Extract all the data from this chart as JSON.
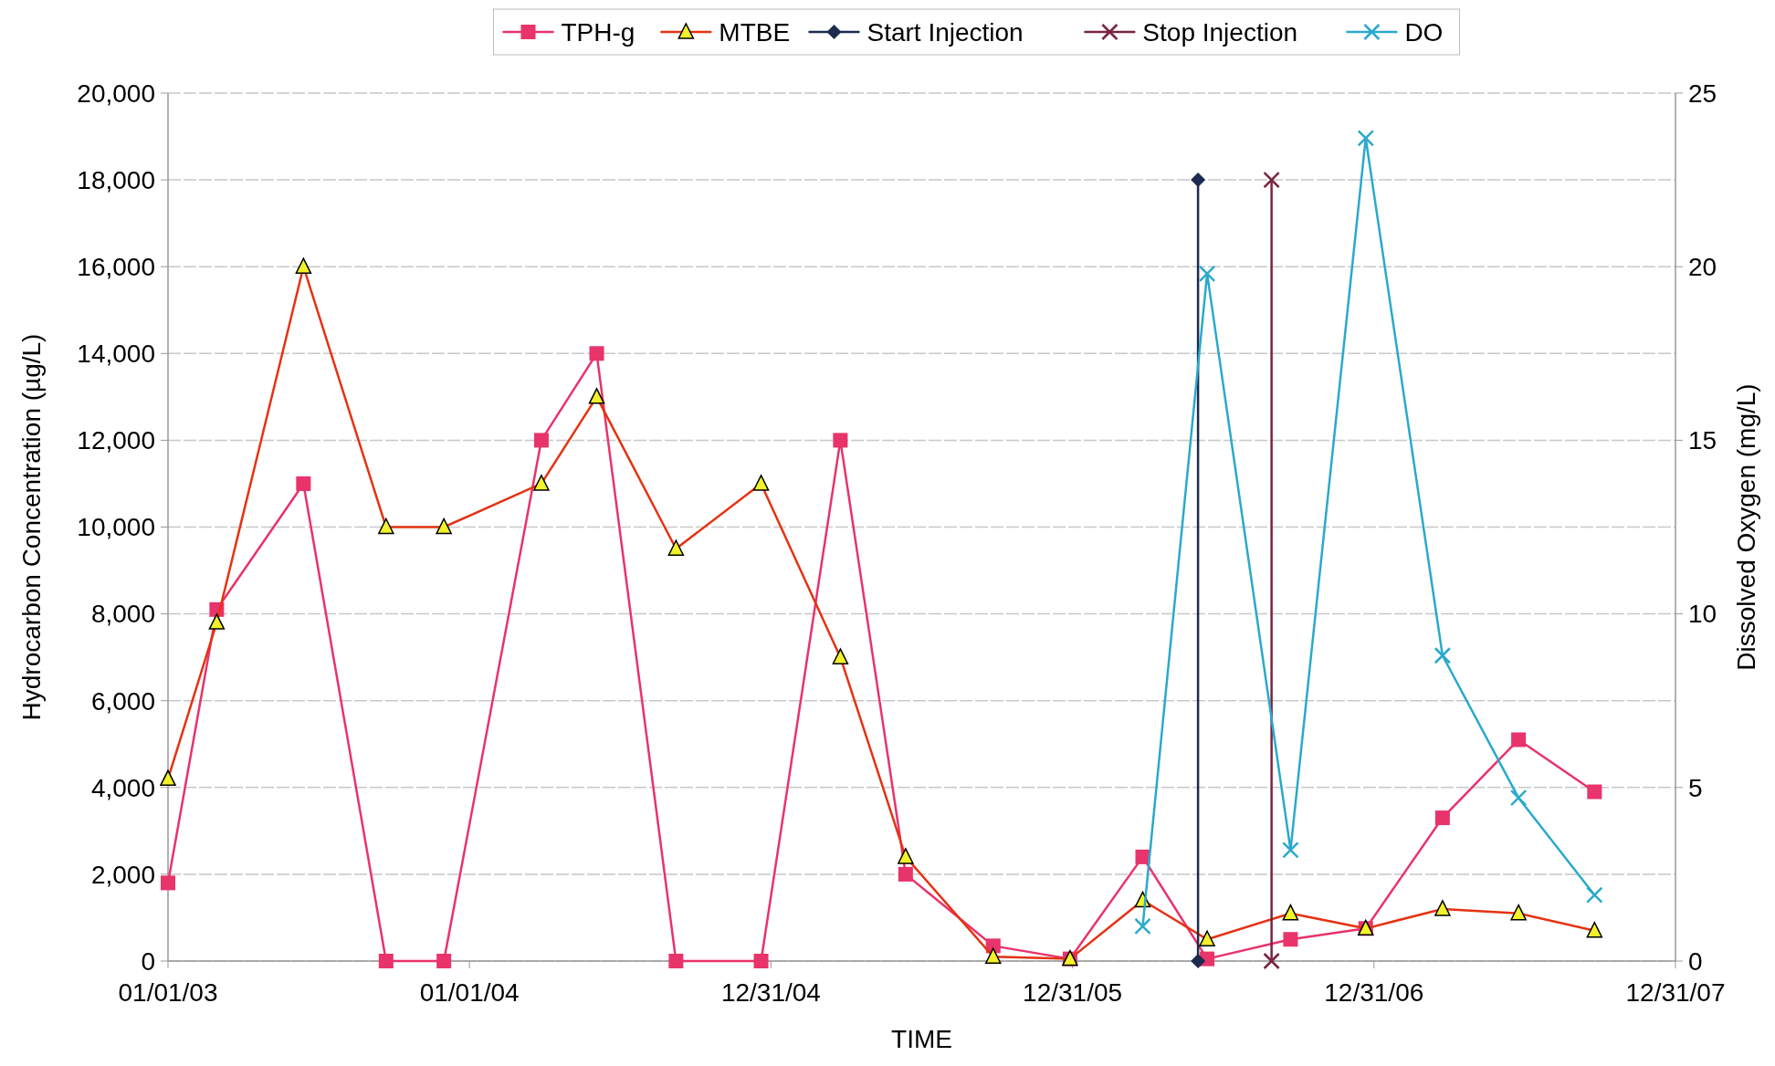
{
  "chart_data": {
    "type": "line",
    "xlabel": "TIME",
    "ylabel": "Hydrocarbon Concentration (µg/L)",
    "y2label": "Dissolved Oxygen (mg/L)",
    "xlim": [
      "2003-01-01",
      "2007-12-31"
    ],
    "xticks": [
      {
        "value": "2003-01-01",
        "label": "01/01/03"
      },
      {
        "value": "2004-01-01",
        "label": "01/01/04"
      },
      {
        "value": "2004-12-31",
        "label": "12/31/04"
      },
      {
        "value": "2005-12-31",
        "label": "12/31/05"
      },
      {
        "value": "2006-12-31",
        "label": "12/31/06"
      },
      {
        "value": "2007-12-31",
        "label": "12/31/07"
      }
    ],
    "ylim": [
      0,
      20000
    ],
    "yticks": [
      {
        "value": 0,
        "label": "0"
      },
      {
        "value": 2000,
        "label": "2,000"
      },
      {
        "value": 4000,
        "label": "4,000"
      },
      {
        "value": 6000,
        "label": "6,000"
      },
      {
        "value": 8000,
        "label": "8,000"
      },
      {
        "value": 10000,
        "label": "10,000"
      },
      {
        "value": 12000,
        "label": "12,000"
      },
      {
        "value": 14000,
        "label": "14,000"
      },
      {
        "value": 16000,
        "label": "16,000"
      },
      {
        "value": 18000,
        "label": "18,000"
      },
      {
        "value": 20000,
        "label": "20,000"
      }
    ],
    "y2lim": [
      0,
      25
    ],
    "y2ticks": [
      0,
      5,
      10,
      15,
      20,
      25
    ],
    "grid": "y",
    "legend": "top",
    "series": [
      {
        "name": "TPH-g",
        "color": "#e8336b",
        "marker": "square",
        "x": [
          "2003-01-01",
          "2003-03-01",
          "2003-06-14",
          "2003-09-22",
          "2003-12-01",
          "2004-03-28",
          "2004-06-03",
          "2004-09-07",
          "2004-12-19",
          "2005-03-25",
          "2005-06-12",
          "2005-09-26",
          "2005-12-28",
          "2006-03-26",
          "2006-06-12",
          "2006-09-21",
          "2006-12-21",
          "2007-03-24",
          "2007-06-24",
          "2007-09-24"
        ],
        "values": [
          1800,
          8100,
          11000,
          0,
          0,
          12000,
          14000,
          0,
          0,
          12000,
          2000,
          350,
          50,
          2400,
          50,
          500,
          750,
          3300,
          5100,
          3900
        ]
      },
      {
        "name": "MTBE",
        "color": "#e53212",
        "marker": "triangle",
        "x": [
          "2003-01-01",
          "2003-03-01",
          "2003-06-14",
          "2003-09-22",
          "2003-12-01",
          "2004-03-28",
          "2004-06-03",
          "2004-09-07",
          "2004-12-19",
          "2005-03-25",
          "2005-06-12",
          "2005-09-26",
          "2005-12-28",
          "2006-03-26",
          "2006-06-12",
          "2006-09-21",
          "2006-12-21",
          "2007-03-24",
          "2007-06-24",
          "2007-09-24"
        ],
        "values": [
          4200,
          7800,
          16000,
          10000,
          10000,
          11000,
          13000,
          9500,
          11000,
          7000,
          2400,
          100,
          50,
          1400,
          500,
          1100,
          750,
          1200,
          1100,
          700
        ]
      },
      {
        "name": "Start Injection",
        "color": "#1c2a4e",
        "marker": "diamond",
        "x": [
          "2006-06-01",
          "2006-06-01"
        ],
        "values": [
          0,
          18000
        ]
      },
      {
        "name": "Stop Injection",
        "color": "#7a2440",
        "marker": "cross",
        "x": [
          "2006-08-29",
          "2006-08-29"
        ],
        "values": [
          0,
          18000
        ]
      },
      {
        "name": "DO",
        "color": "#2aa9cc",
        "marker": "cross",
        "axis": "y2",
        "x": [
          "2006-03-26",
          "2006-06-12",
          "2006-09-21",
          "2006-12-21",
          "2007-03-24",
          "2007-06-24",
          "2007-09-24"
        ],
        "values": [
          1.0,
          19.8,
          3.2,
          23.7,
          8.8,
          4.7,
          1.9
        ]
      }
    ]
  }
}
